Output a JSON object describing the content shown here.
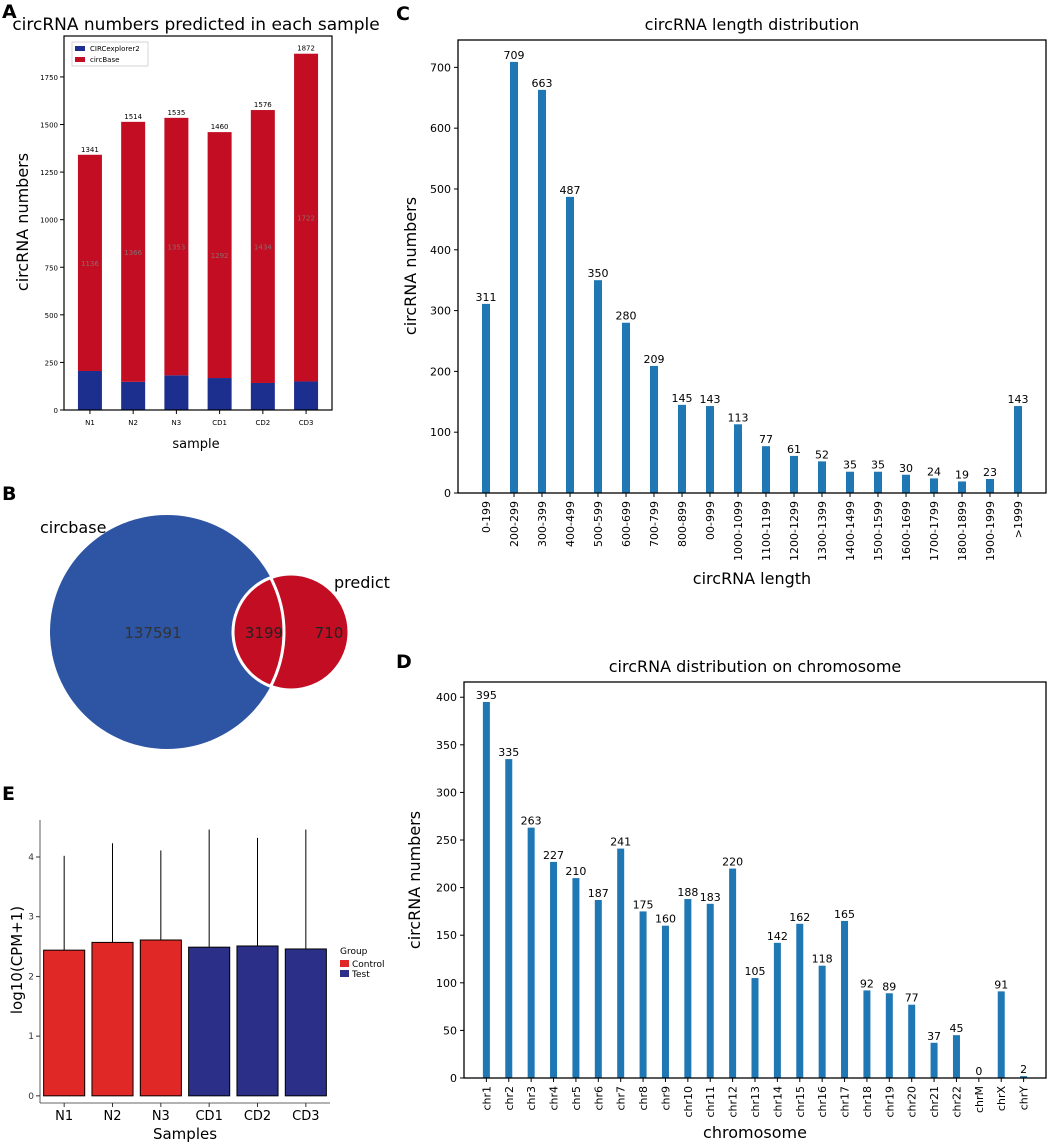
{
  "panel_labels": {
    "a": "A",
    "b": "B",
    "c": "C",
    "d": "D",
    "e": "E"
  },
  "colors": {
    "blue_bar": "#1f77b4",
    "red": "#c30d23",
    "navy": "#1c2f8f",
    "venn_blue": "#2e55a3",
    "e_red": "#e02927",
    "e_navy": "#2b2f87"
  },
  "chart_data": [
    {
      "id": "A",
      "type": "bar",
      "stacked": true,
      "title": "circRNA numbers predicted in each sample",
      "xlabel": "sample",
      "ylabel": "circRNA numbers",
      "categories": [
        "N1",
        "N2",
        "N3",
        "CD1",
        "CD2",
        "CD3"
      ],
      "series": [
        {
          "name": "CIRCexplorer2",
          "values": [
            205,
            148,
            182,
            168,
            142,
            150
          ]
        },
        {
          "name": "circBase",
          "values": [
            1136,
            1366,
            1353,
            1292,
            1434,
            1722
          ]
        }
      ],
      "totals": [
        1341,
        1514,
        1535,
        1460,
        1576,
        1872
      ],
      "yticks": [
        0,
        250,
        500,
        750,
        1000,
        1250,
        1500,
        1750
      ],
      "ylim": [
        0,
        1965
      ],
      "legend": "top-left"
    },
    {
      "id": "B",
      "type": "venn",
      "sets": [
        {
          "name": "circbase",
          "only": 137591
        },
        {
          "name": "predict",
          "only": 710
        }
      ],
      "overlap": 3199
    },
    {
      "id": "C",
      "type": "bar",
      "title": "circRNA length distribution",
      "xlabel": "circRNA length",
      "ylabel": "circRNA numbers",
      "categories": [
        "0-199",
        "200-299",
        "300-399",
        "400-499",
        "500-599",
        "600-699",
        "700-799",
        "800-899",
        "00-999",
        "1000-1099",
        "1100-1199",
        "1200-1299",
        "1300-1399",
        "1400-1499",
        "1500-1599",
        "1600-1699",
        "1700-1799",
        "1800-1899",
        "1900-1999",
        ">1999"
      ],
      "values": [
        311,
        709,
        663,
        487,
        350,
        280,
        209,
        145,
        143,
        113,
        77,
        61,
        52,
        35,
        35,
        30,
        24,
        19,
        23,
        143
      ],
      "yticks": [
        0,
        100,
        200,
        300,
        400,
        500,
        600,
        700
      ],
      "ylim": [
        0,
        745
      ]
    },
    {
      "id": "D",
      "type": "bar",
      "title": "circRNA distribution on chromosome",
      "xlabel": "chromosome",
      "ylabel": "circRNA numbers",
      "categories": [
        "chr1",
        "chr2",
        "chr3",
        "chr4",
        "chr5",
        "chr6",
        "chr7",
        "chr8",
        "chr9",
        "chr10",
        "chr11",
        "chr12",
        "chr13",
        "chr14",
        "chr15",
        "chr16",
        "chr17",
        "chr18",
        "chr19",
        "chr20",
        "chr21",
        "chr22",
        "chrM",
        "chrX",
        "chrY"
      ],
      "values": [
        395,
        335,
        263,
        227,
        210,
        187,
        241,
        175,
        160,
        188,
        183,
        220,
        105,
        142,
        162,
        118,
        165,
        92,
        89,
        77,
        37,
        45,
        0,
        91,
        2
      ],
      "yticks": [
        0,
        50,
        100,
        150,
        200,
        250,
        300,
        350,
        400
      ],
      "ylim": [
        0,
        416
      ]
    },
    {
      "id": "E",
      "type": "bar",
      "title": "",
      "xlabel": "Samples",
      "ylabel": "log10(CPM+1)",
      "categories": [
        "N1",
        "N2",
        "N3",
        "CD1",
        "CD2",
        "CD3"
      ],
      "groups": [
        "Control",
        "Control",
        "Control",
        "Test",
        "Test",
        "Test"
      ],
      "values": [
        2.44,
        2.57,
        2.61,
        2.49,
        2.51,
        2.46
      ],
      "error_upper": [
        4.02,
        4.23,
        4.11,
        4.46,
        4.32,
        4.46
      ],
      "yticks": [
        0,
        1,
        2,
        3,
        4
      ],
      "ylim": [
        -0.12,
        4.62
      ],
      "legend_title": "Group",
      "legend": [
        {
          "name": "Control",
          "color": "#e02927"
        },
        {
          "name": "Test",
          "color": "#2b2f87"
        }
      ]
    }
  ]
}
